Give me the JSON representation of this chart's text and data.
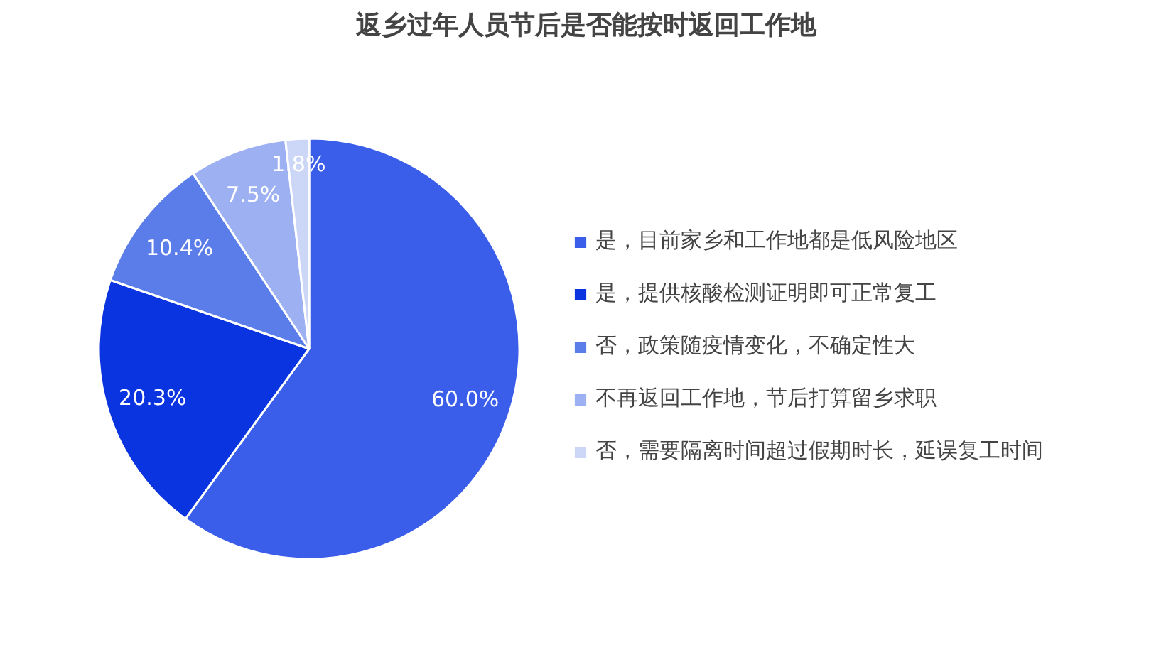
{
  "chart_data": {
    "type": "pie",
    "title": "返乡过年人员节后是否能按时返回工作地",
    "categories": [
      "是，目前家乡和工作地都是低风险地区",
      "是，提供核酸检测证明即可正常复工",
      "否，政策随疫情变化，不确定性大",
      "不再返回工作地，节后打算留乡求职",
      "否，需要隔离时间超过假期时长，延误复工时间"
    ],
    "values": [
      60.0,
      20.3,
      10.4,
      7.5,
      1.8
    ],
    "value_labels": [
      "60.0%",
      "20.3%",
      "10.4%",
      "7.5%",
      "1.8%"
    ],
    "colors": [
      "#3a5ee9",
      "#0a34e0",
      "#5b7de9",
      "#9db0f1",
      "#ccd7f7"
    ],
    "legend": "right"
  }
}
